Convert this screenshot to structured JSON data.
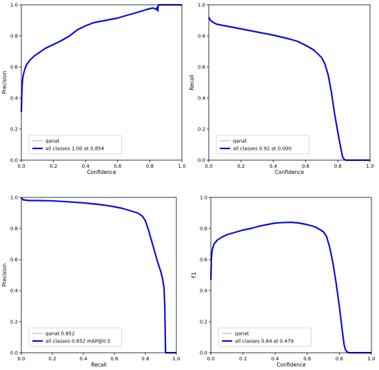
{
  "colors": {
    "class_line": "#7cb4e0",
    "all_line": "#0a0adc",
    "axis": "#000000",
    "legend_border": "#cccccc"
  },
  "chart_data": [
    {
      "type": "line",
      "xlabel": "Confidence",
      "ylabel": "Precision",
      "xlim": [
        0,
        1
      ],
      "ylim": [
        0,
        1
      ],
      "xticks": [
        "0.0",
        "0.2",
        "0.4",
        "0.6",
        "0.8",
        "1.0"
      ],
      "yticks": [
        "0.0",
        "0.2",
        "0.4",
        "0.6",
        "0.8",
        "1.0"
      ],
      "grid": false,
      "legend_position": "bottom-left",
      "series": [
        {
          "name": "qanat",
          "x": [],
          "y": []
        },
        {
          "name": "all classes 1.00 at 0.854",
          "x": [
            0.0,
            0.003,
            0.006,
            0.01,
            0.02,
            0.03,
            0.05,
            0.08,
            0.1,
            0.15,
            0.2,
            0.25,
            0.3,
            0.35,
            0.4,
            0.45,
            0.5,
            0.55,
            0.6,
            0.65,
            0.7,
            0.75,
            0.78,
            0.8,
            0.82,
            0.84,
            0.845,
            0.85,
            0.852,
            0.854,
            0.86,
            0.9,
            0.95,
            1.0
          ],
          "y": [
            0.31,
            0.44,
            0.5,
            0.54,
            0.58,
            0.61,
            0.64,
            0.67,
            0.685,
            0.72,
            0.745,
            0.77,
            0.8,
            0.84,
            0.865,
            0.885,
            0.895,
            0.905,
            0.915,
            0.93,
            0.945,
            0.96,
            0.97,
            0.975,
            0.98,
            0.97,
            0.985,
            0.96,
            0.99,
            1.0,
            1.0,
            1.0,
            1.0,
            1.0
          ]
        }
      ]
    },
    {
      "type": "line",
      "xlabel": "Confidence",
      "ylabel": "Recall",
      "xlim": [
        0,
        1
      ],
      "ylim": [
        0,
        1
      ],
      "xticks": [
        "0.0",
        "0.2",
        "0.4",
        "0.6",
        "0.8",
        "1.0"
      ],
      "yticks": [
        "0.0",
        "0.2",
        "0.4",
        "0.6",
        "0.8",
        "1.0"
      ],
      "grid": false,
      "legend_position": "bottom-left",
      "series": [
        {
          "name": "qanat",
          "x": [],
          "y": []
        },
        {
          "name": "all classes 0.92 at 0.000",
          "x": [
            0.0,
            0.01,
            0.03,
            0.05,
            0.1,
            0.2,
            0.3,
            0.4,
            0.5,
            0.55,
            0.6,
            0.65,
            0.7,
            0.72,
            0.74,
            0.76,
            0.78,
            0.8,
            0.82,
            0.83,
            0.84,
            0.85,
            0.86,
            0.88,
            0.9,
            1.0
          ],
          "y": [
            0.92,
            0.9,
            0.885,
            0.875,
            0.865,
            0.845,
            0.825,
            0.805,
            0.78,
            0.765,
            0.74,
            0.71,
            0.66,
            0.62,
            0.55,
            0.44,
            0.3,
            0.18,
            0.07,
            0.02,
            0.005,
            0.0,
            0.0,
            0.0,
            0.0,
            0.0
          ]
        }
      ]
    },
    {
      "type": "line",
      "xlabel": "Recall",
      "ylabel": "Precision",
      "xlim": [
        0,
        1
      ],
      "ylim": [
        0,
        1
      ],
      "xticks": [
        "0.0",
        "0.2",
        "0.4",
        "0.6",
        "0.8",
        "1.0"
      ],
      "yticks": [
        "0.0",
        "0.2",
        "0.4",
        "0.6",
        "0.8",
        "1.0"
      ],
      "grid": false,
      "legend_position": "bottom-left",
      "series": [
        {
          "name": "qanat 0.852",
          "x": [],
          "y": []
        },
        {
          "name": "all classes 0.852 mAP@0.5",
          "x": [
            0.0,
            0.01,
            0.05,
            0.1,
            0.2,
            0.3,
            0.4,
            0.5,
            0.55,
            0.6,
            0.65,
            0.7,
            0.75,
            0.78,
            0.8,
            0.82,
            0.84,
            0.86,
            0.88,
            0.9,
            0.91,
            0.92,
            0.925,
            0.93,
            0.935,
            1.0
          ],
          "y": [
            1.0,
            0.985,
            0.98,
            0.98,
            0.978,
            0.972,
            0.965,
            0.955,
            0.948,
            0.94,
            0.93,
            0.915,
            0.9,
            0.88,
            0.85,
            0.79,
            0.72,
            0.65,
            0.58,
            0.52,
            0.48,
            0.42,
            0.3,
            0.0,
            0.0,
            0.0
          ]
        }
      ]
    },
    {
      "type": "line",
      "xlabel": "Confidence",
      "ylabel": "F1",
      "xlim": [
        0,
        1
      ],
      "ylim": [
        0,
        1
      ],
      "xticks": [
        "0.0",
        "0.2",
        "0.4",
        "0.6",
        "0.8",
        "1.0"
      ],
      "yticks": [
        "0.0",
        "0.2",
        "0.4",
        "0.6",
        "0.8",
        "1.0"
      ],
      "grid": false,
      "legend_position": "bottom-left",
      "series": [
        {
          "name": "qanat",
          "x": [],
          "y": []
        },
        {
          "name": "all classes 0.84 at 0.479",
          "x": [
            0.0,
            0.003,
            0.006,
            0.01,
            0.02,
            0.04,
            0.07,
            0.1,
            0.15,
            0.2,
            0.25,
            0.3,
            0.35,
            0.4,
            0.45,
            0.5,
            0.55,
            0.6,
            0.65,
            0.7,
            0.72,
            0.74,
            0.76,
            0.78,
            0.8,
            0.82,
            0.83,
            0.84,
            0.85,
            0.86,
            0.9,
            1.0
          ],
          "y": [
            0.47,
            0.6,
            0.64,
            0.67,
            0.7,
            0.725,
            0.745,
            0.76,
            0.775,
            0.79,
            0.8,
            0.815,
            0.825,
            0.835,
            0.838,
            0.84,
            0.835,
            0.825,
            0.81,
            0.78,
            0.75,
            0.68,
            0.58,
            0.45,
            0.3,
            0.13,
            0.05,
            0.015,
            0.005,
            0.0,
            0.0,
            0.0
          ]
        }
      ]
    }
  ]
}
